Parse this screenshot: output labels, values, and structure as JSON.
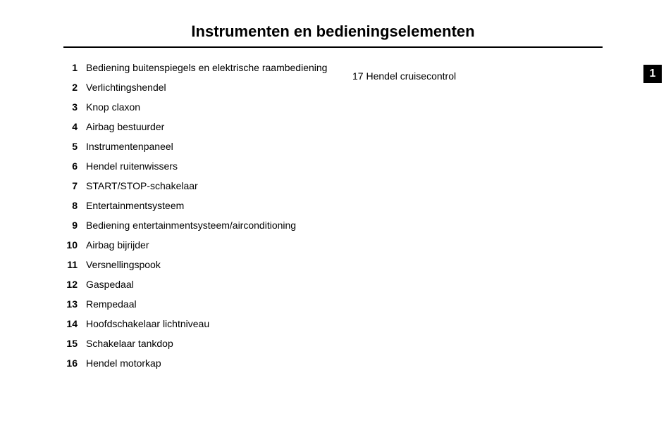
{
  "title": "Instrumenten en bedieningselementen",
  "chapter_tab": "1",
  "colors": {
    "background": "#ffffff",
    "text": "#000000",
    "rule": "#000000",
    "tab_bg": "#000000",
    "tab_text": "#ffffff"
  },
  "typography": {
    "title_fontsize": 22,
    "body_fontsize": 14,
    "line_height": 28,
    "font_family": "Arial, Helvetica, sans-serif"
  },
  "left_items": [
    {
      "num": "1",
      "text": "Bediening buitenspiegels en elektrische raambediening"
    },
    {
      "num": "2",
      "text": "Verlichtingshendel"
    },
    {
      "num": "3",
      "text": "Knop claxon"
    },
    {
      "num": "4",
      "text": "Airbag bestuurder"
    },
    {
      "num": "5",
      "text": "Instrumentenpaneel"
    },
    {
      "num": "6",
      "text": "Hendel ruitenwissers"
    },
    {
      "num": "7",
      "text": "START/STOP-schakelaar"
    },
    {
      "num": "8",
      "text": "Entertainmentsysteem"
    },
    {
      "num": "9",
      "text": "Bediening entertainmentsysteem/airconditioning"
    },
    {
      "num": "10",
      "text": "Airbag bijrijder"
    },
    {
      "num": "11",
      "text": "Versnellingspook"
    },
    {
      "num": "12",
      "text": "Gaspedaal"
    },
    {
      "num": "13",
      "text": "Rempedaal"
    },
    {
      "num": "14",
      "text": "Hoofdschakelaar lichtniveau"
    },
    {
      "num": "15",
      "text": "Schakelaar tankdop"
    },
    {
      "num": "16",
      "text": "Hendel motorkap"
    }
  ],
  "right_items": [
    {
      "num": "17",
      "text": "Hendel cruisecontrol"
    }
  ]
}
